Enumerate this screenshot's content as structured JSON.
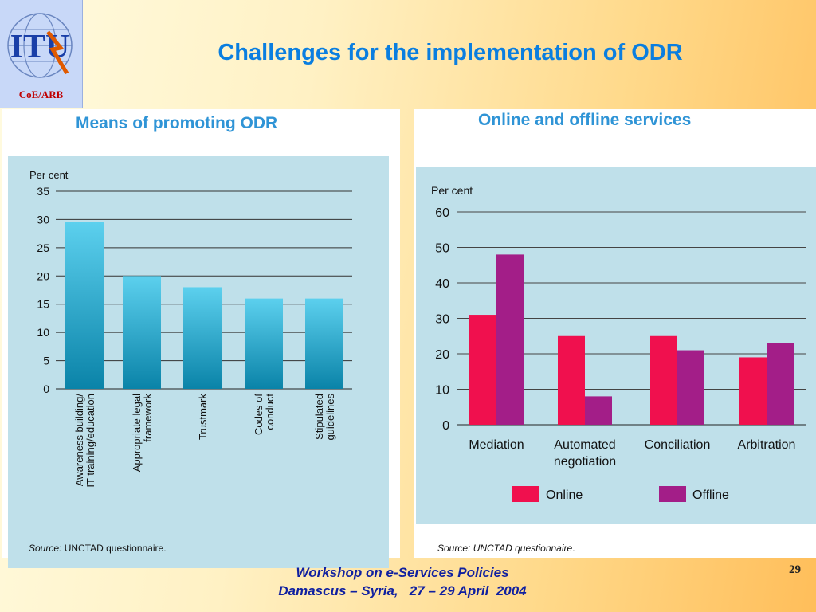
{
  "logo": {
    "mark": "ITU",
    "caption": "CoE/ARB"
  },
  "slide": {
    "title": "Challenges for the implementation of ODR"
  },
  "chart_data": [
    {
      "type": "bar",
      "title": "Means of promoting ODR",
      "ylabel": "Per cent",
      "ylim": [
        0,
        35
      ],
      "yticks": [
        0,
        5,
        10,
        15,
        20,
        25,
        30,
        35
      ],
      "categories": [
        [
          "Awareness building/",
          "IT training/education"
        ],
        [
          "Appropriate legal",
          "framework"
        ],
        [
          "Trustmark"
        ],
        [
          "Codes of",
          "conduct"
        ],
        [
          "Stipulated",
          "guidelines"
        ]
      ],
      "values": [
        29.5,
        20,
        18,
        16,
        16
      ],
      "grid": true,
      "colors": {
        "bar_top": "#5cd0ee",
        "bar_bottom": "#0a83a8"
      },
      "source_label": "Source:",
      "source_text": " UNCTAD questionnaire."
    },
    {
      "type": "bar",
      "title": "Online and offline services",
      "ylabel": "Per cent",
      "ylim": [
        0,
        60
      ],
      "yticks": [
        0,
        10,
        20,
        30,
        40,
        50,
        60
      ],
      "categories": [
        [
          "Mediation"
        ],
        [
          "Automated",
          "negotiation"
        ],
        [
          "Conciliation"
        ],
        [
          "Arbitration"
        ]
      ],
      "series": [
        {
          "name": "Online",
          "color": "#f0104e",
          "values": [
            31,
            25,
            25,
            19
          ]
        },
        {
          "name": "Offline",
          "color": "#a31e88",
          "values": [
            48,
            8,
            21,
            23
          ]
        }
      ],
      "grid": true,
      "legend": "bottom",
      "source_label": "Source: UNCTAD questionnaire",
      "source_text": "."
    }
  ],
  "footer": {
    "line1": "Workshop on e-Services Policies",
    "line2": "Damascus – Syria,   27 – 29 April  2004",
    "page": "29"
  }
}
